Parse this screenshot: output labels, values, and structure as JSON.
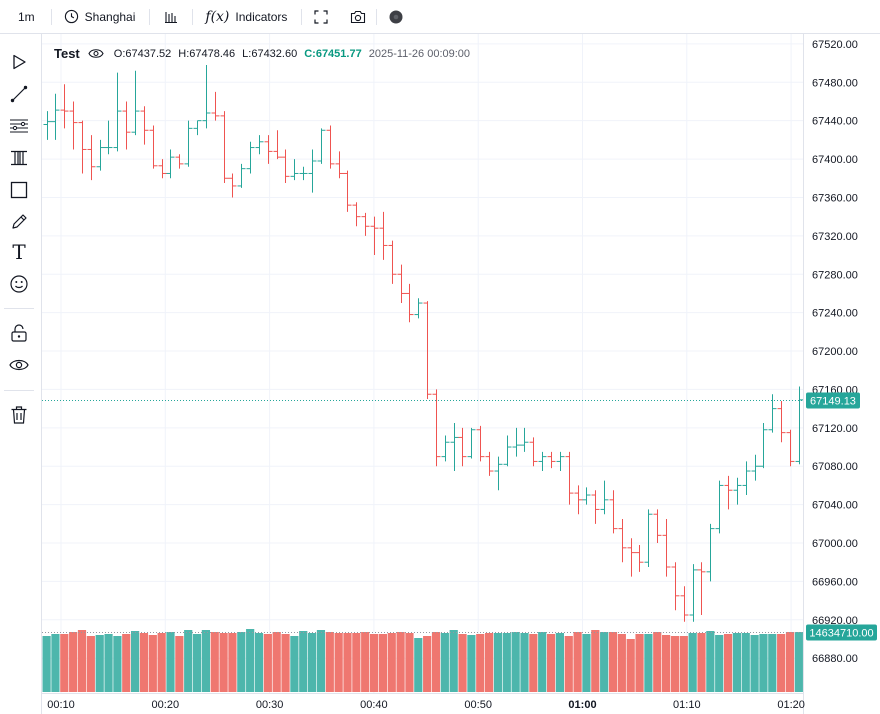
{
  "toolbar": {
    "interval": "1m",
    "timezone": "Shanghai",
    "fx_symbol": "f(x)",
    "indicators_label": "Indicators",
    "icons": [
      "clock-icon",
      "bar-style-icon",
      "fx-icon",
      "fullscreen-icon",
      "camera-icon",
      "theme-dot-icon"
    ]
  },
  "sidebar": {
    "tools": [
      "cursor-arrow-icon",
      "trend-line-icon",
      "fib-levels-icon",
      "patterns-icon",
      "rectangle-icon",
      "pencil-icon",
      "text-icon",
      "emoji-icon",
      "lock-icon",
      "eye-icon",
      "trash-icon"
    ],
    "text_tool_glyph": "T"
  },
  "legend": {
    "symbol": "Test",
    "open": "O:67437.52",
    "high": "H:67478.46",
    "low": "L:67432.60",
    "close": "C:67451.77",
    "timestamp": "2025-11-26 00:09:00"
  },
  "colors": {
    "up": "#26a69a",
    "down": "#ef5350",
    "up_volume": "#4db6ac",
    "down_volume": "#ef7770",
    "price_badge": "#26a69a",
    "grid": "#f0f3fa",
    "border": "#e0e3eb"
  },
  "chart_data": {
    "type": "ohlc-bar",
    "title": "Test",
    "interval": "1m",
    "x_ticks": [
      "00:10",
      "00:20",
      "00:30",
      "00:40",
      "00:50",
      "01:00",
      "01:10",
      "01:20"
    ],
    "y_ticks": [
      "67520.00",
      "67480.00",
      "67440.00",
      "67400.00",
      "67360.00",
      "67320.00",
      "67280.00",
      "67240.00",
      "67200.00",
      "67160.00",
      "67120.00",
      "67080.00",
      "67040.00",
      "67000.00",
      "66960.00",
      "66920.00",
      "66880.00"
    ],
    "ylim": [
      66850,
      67523
    ],
    "grid": true,
    "last_price_label": "67149.13",
    "last_price": 67149.13,
    "volume_label": "14634710.00",
    "bars": [
      [
        67436,
        67450,
        67420,
        67439
      ],
      [
        67439,
        67468,
        67420,
        67451
      ],
      [
        67451,
        67478,
        67432,
        67450
      ],
      [
        67450,
        67460,
        67410,
        67438
      ],
      [
        67438,
        67440,
        67385,
        67410
      ],
      [
        67410,
        67425,
        67378,
        67392
      ],
      [
        67392,
        67420,
        67388,
        67412
      ],
      [
        67412,
        67440,
        67405,
        67412
      ],
      [
        67412,
        67490,
        67408,
        67450
      ],
      [
        67450,
        67460,
        67410,
        67428
      ],
      [
        67428,
        67492,
        67425,
        67450
      ],
      [
        67450,
        67455,
        67415,
        67430
      ],
      [
        67430,
        67435,
        67390,
        67393
      ],
      [
        67393,
        67400,
        67380,
        67385
      ],
      [
        67385,
        67410,
        67380,
        67402
      ],
      [
        67402,
        67405,
        67390,
        67395
      ],
      [
        67395,
        67440,
        67392,
        67432
      ],
      [
        67432,
        67440,
        67425,
        67440
      ],
      [
        67440,
        67498,
        67432,
        67448
      ],
      [
        67448,
        67470,
        67440,
        67445
      ],
      [
        67445,
        67450,
        67375,
        67380
      ],
      [
        67380,
        67385,
        67360,
        67372
      ],
      [
        67372,
        67395,
        67370,
        67390
      ],
      [
        67390,
        67418,
        67385,
        67412
      ],
      [
        67412,
        67425,
        67405,
        67418
      ],
      [
        67418,
        67425,
        67395,
        67408
      ],
      [
        67408,
        67430,
        67400,
        67402
      ],
      [
        67402,
        67410,
        67375,
        67382
      ],
      [
        67382,
        67400,
        67378,
        67385
      ],
      [
        67385,
        67392,
        67378,
        67385
      ],
      [
        67385,
        67410,
        67365,
        67398
      ],
      [
        67398,
        67432,
        67395,
        67430
      ],
      [
        67430,
        67435,
        67390,
        67395
      ],
      [
        67395,
        67408,
        67380,
        67385
      ],
      [
        67385,
        67388,
        67345,
        67352
      ],
      [
        67352,
        67355,
        67330,
        67340
      ],
      [
        67340,
        67344,
        67320,
        67330
      ],
      [
        67330,
        67340,
        67300,
        67328
      ],
      [
        67328,
        67345,
        67295,
        67310
      ],
      [
        67310,
        67315,
        67270,
        67280
      ],
      [
        67280,
        67290,
        67250,
        67260
      ],
      [
        67260,
        67270,
        67230,
        67238
      ],
      [
        67238,
        67255,
        67234,
        67250
      ],
      [
        67250,
        67252,
        67150,
        67155
      ],
      [
        67155,
        67160,
        67080,
        67090
      ],
      [
        67090,
        67112,
        67085,
        67105
      ],
      [
        67105,
        67125,
        67075,
        67110
      ],
      [
        67110,
        67120,
        67080,
        67090
      ],
      [
        67090,
        67120,
        67088,
        67118
      ],
      [
        67118,
        67122,
        67085,
        67090
      ],
      [
        67090,
        67095,
        67070,
        67075
      ],
      [
        67075,
        67090,
        67055,
        67082
      ],
      [
        67082,
        67112,
        67080,
        67100
      ],
      [
        67100,
        67120,
        67090,
        67102
      ],
      [
        67102,
        67120,
        67095,
        67105
      ],
      [
        67105,
        67110,
        67080,
        67085
      ],
      [
        67085,
        67095,
        67075,
        67090
      ],
      [
        67090,
        67095,
        67078,
        67085
      ],
      [
        67085,
        67095,
        67075,
        67090
      ],
      [
        67090,
        67095,
        67040,
        67052
      ],
      [
        67052,
        67060,
        67030,
        67045
      ],
      [
        67045,
        67058,
        67040,
        67050
      ],
      [
        67050,
        67055,
        67020,
        67035
      ],
      [
        67035,
        67065,
        67030,
        67045
      ],
      [
        67045,
        67055,
        67010,
        67015
      ],
      [
        67015,
        67025,
        66980,
        66995
      ],
      [
        66995,
        67005,
        66965,
        66990
      ],
      [
        66990,
        66998,
        66970,
        66980
      ],
      [
        66980,
        67035,
        66975,
        67030
      ],
      [
        67030,
        67035,
        67000,
        67008
      ],
      [
        67008,
        67025,
        66965,
        66975
      ],
      [
        66975,
        66980,
        66930,
        66945
      ],
      [
        66945,
        66955,
        66918,
        66925
      ],
      [
        66925,
        66978,
        66918,
        66972
      ],
      [
        66972,
        66980,
        66925,
        66970
      ],
      [
        66970,
        67020,
        66960,
        67015
      ],
      [
        67015,
        67065,
        67010,
        67060
      ],
      [
        67060,
        67070,
        67035,
        67055
      ],
      [
        67055,
        67068,
        67040,
        67060
      ],
      [
        67060,
        67085,
        67050,
        67075
      ],
      [
        67075,
        67092,
        67065,
        67080
      ],
      [
        67080,
        67125,
        67078,
        67118
      ],
      [
        67118,
        67155,
        67115,
        67140
      ],
      [
        67140,
        67148,
        67105,
        67115
      ],
      [
        67115,
        67118,
        67080,
        67085
      ],
      [
        67085,
        67163,
        67082,
        67149.13
      ]
    ],
    "volume_note": "volume pane values not printed except last label"
  }
}
